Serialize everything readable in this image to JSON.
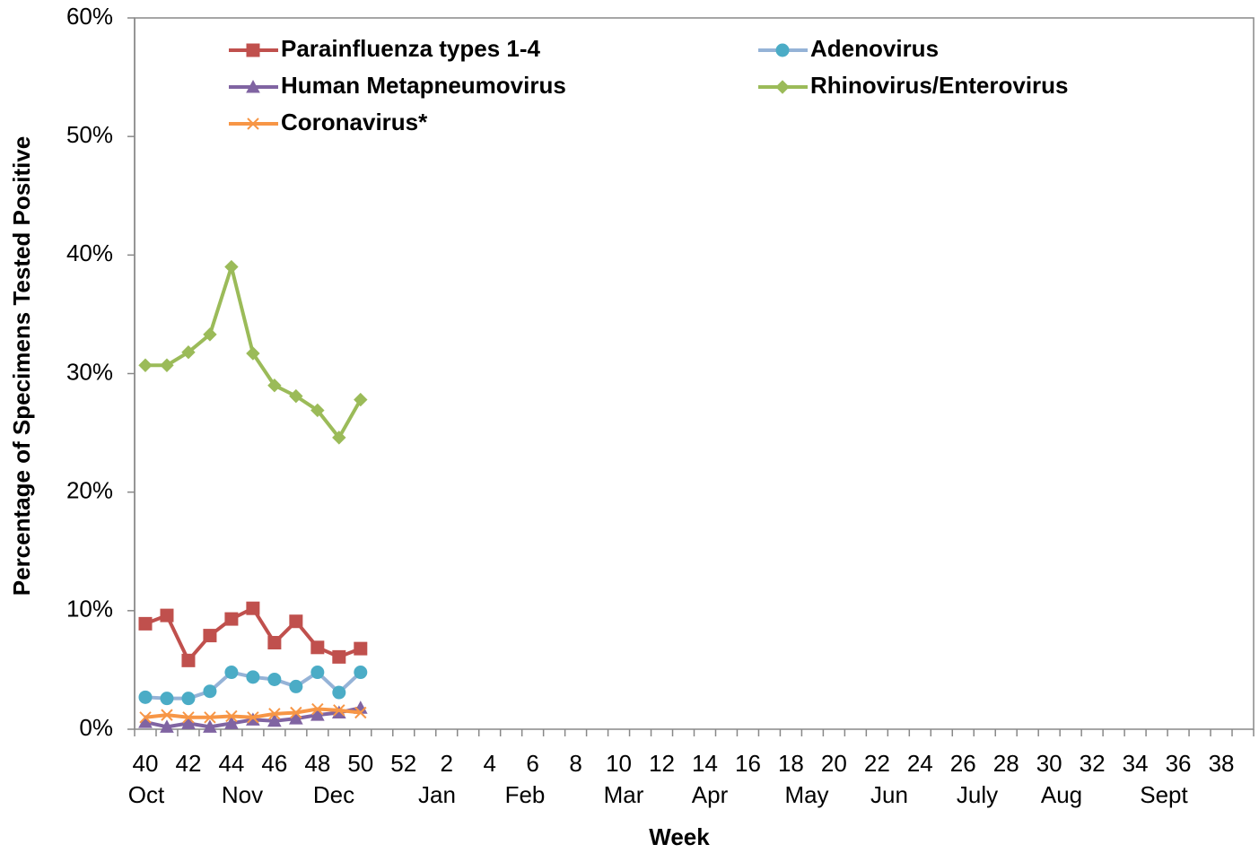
{
  "chart_data": {
    "type": "line",
    "x_label": "Week",
    "y_label": "Percentage of Specimens Tested Positive",
    "categories": [
      "40",
      null,
      "42",
      null,
      "44",
      null,
      "46",
      null,
      "48",
      null,
      "50",
      null,
      "52",
      null,
      "2",
      null,
      "4",
      null,
      "6",
      null,
      "8",
      null,
      "10",
      null,
      "12",
      null,
      "14",
      null,
      "16",
      null,
      "18",
      null,
      "20",
      null,
      "22",
      null,
      "24",
      null,
      "26",
      null,
      "28",
      null,
      "30",
      null,
      "32",
      null,
      "34",
      null,
      "36",
      null,
      "38",
      null
    ],
    "month_labels": [
      "Oct",
      "Nov",
      "Dec",
      "Jan",
      "Feb",
      "Mar",
      "Apr",
      "May",
      "Jun",
      "July",
      "Aug",
      "Sept"
    ],
    "ylim": [
      0,
      60
    ],
    "yticks": [
      {
        "value": 0,
        "label": "0%"
      },
      {
        "value": 10,
        "label": "10%"
      },
      {
        "value": 20,
        "label": "20%"
      },
      {
        "value": 30,
        "label": "30%"
      },
      {
        "value": 40,
        "label": "40%"
      },
      {
        "value": 50,
        "label": "50%"
      },
      {
        "value": 60,
        "label": "60%"
      }
    ],
    "series": [
      {
        "name": "Parainfluenza types 1-4",
        "color": "#c0504d",
        "marker": "square",
        "values": [
          8.9,
          9.6,
          5.8,
          7.9,
          9.3,
          10.2,
          7.3,
          9.1,
          6.9,
          6.1,
          6.8,
          null,
          null,
          null,
          null,
          null,
          null,
          null,
          null,
          null,
          null,
          null,
          null,
          null,
          null,
          null,
          null,
          null,
          null,
          null,
          null,
          null,
          null,
          null,
          null,
          null,
          null,
          null,
          null,
          null,
          null,
          null,
          null,
          null,
          null,
          null,
          null,
          null,
          null,
          null,
          null,
          null
        ]
      },
      {
        "name": "Adenovirus",
        "color": "#4bacc6",
        "line_color": "#95b3d7",
        "marker": "circle",
        "values": [
          2.7,
          2.6,
          2.6,
          3.2,
          4.8,
          4.4,
          4.2,
          3.6,
          4.8,
          3.1,
          4.8,
          null,
          null,
          null,
          null,
          null,
          null,
          null,
          null,
          null,
          null,
          null,
          null,
          null,
          null,
          null,
          null,
          null,
          null,
          null,
          null,
          null,
          null,
          null,
          null,
          null,
          null,
          null,
          null,
          null,
          null,
          null,
          null,
          null,
          null,
          null,
          null,
          null,
          null,
          null,
          null,
          null
        ]
      },
      {
        "name": "Human Metapneumovirus",
        "color": "#8064a2",
        "marker": "triangle",
        "values": [
          0.6,
          0.2,
          0.5,
          0.2,
          0.5,
          0.8,
          0.7,
          0.9,
          1.2,
          1.4,
          1.8,
          null,
          null,
          null,
          null,
          null,
          null,
          null,
          null,
          null,
          null,
          null,
          null,
          null,
          null,
          null,
          null,
          null,
          null,
          null,
          null,
          null,
          null,
          null,
          null,
          null,
          null,
          null,
          null,
          null,
          null,
          null,
          null,
          null,
          null,
          null,
          null,
          null,
          null,
          null,
          null,
          null
        ]
      },
      {
        "name": "Rhinovirus/Enterovirus",
        "color": "#9bbb59",
        "marker": "diamond",
        "values": [
          30.7,
          30.7,
          31.8,
          33.3,
          39.0,
          31.7,
          29.0,
          28.1,
          26.9,
          24.6,
          27.8,
          null,
          null,
          null,
          null,
          null,
          null,
          null,
          null,
          null,
          null,
          null,
          null,
          null,
          null,
          null,
          null,
          null,
          null,
          null,
          null,
          null,
          null,
          null,
          null,
          null,
          null,
          null,
          null,
          null,
          null,
          null,
          null,
          null,
          null,
          null,
          null,
          null,
          null,
          null,
          null,
          null
        ]
      },
      {
        "name": "Coronavirus*",
        "color": "#f79646",
        "marker": "x",
        "values": [
          1.0,
          1.2,
          1.0,
          1.0,
          1.1,
          1.0,
          1.3,
          1.4,
          1.7,
          1.6,
          1.4,
          null,
          null,
          null,
          null,
          null,
          null,
          null,
          null,
          null,
          null,
          null,
          null,
          null,
          null,
          null,
          null,
          null,
          null,
          null,
          null,
          null,
          null,
          null,
          null,
          null,
          null,
          null,
          null,
          null,
          null,
          null,
          null,
          null,
          null,
          null,
          null,
          null,
          null,
          null,
          null,
          null
        ]
      }
    ]
  }
}
